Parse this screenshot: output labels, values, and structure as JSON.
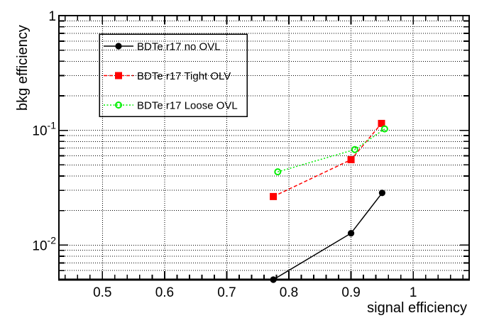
{
  "chart_data": {
    "type": "line",
    "title": "",
    "xlabel": "signal efficiency",
    "ylabel": "bkg efficiency",
    "xlim": [
      0.43,
      1.09
    ],
    "ylim": [
      0.005,
      1.0
    ],
    "y_scale": "log",
    "x_scale": "linear",
    "grid": "dotted black, vertical at x majors, horizontal at every log subdivision",
    "x_ticks": [
      {
        "value": 0.5,
        "label": "0.5"
      },
      {
        "value": 0.6,
        "label": "0.6"
      },
      {
        "value": 0.7,
        "label": "0.7"
      },
      {
        "value": 0.8,
        "label": "0.8"
      },
      {
        "value": 0.9,
        "label": "0.9"
      },
      {
        "value": 1.0,
        "label": "1"
      }
    ],
    "x_minor_step": 0.02,
    "y_ticks": [
      {
        "value": 1,
        "base": "1",
        "exp": ""
      },
      {
        "value": 0.1,
        "base": "10",
        "exp": "-1"
      },
      {
        "value": 0.01,
        "base": "10",
        "exp": "-2"
      }
    ],
    "y_minor": "2-9 multiples of each decade",
    "colors": {
      "axis": "#000000",
      "grid": "#000000",
      "series_no_ovl": "#000000",
      "series_tight_olv": "#ff0000",
      "series_loose_ovl": "#00ee00"
    },
    "legend": {
      "position": "top-left",
      "border_color": "#000000",
      "fill": "transparent"
    },
    "series": [
      {
        "name": "BDTe r17 no OVL",
        "color": "#000000",
        "line": "solid",
        "marker": "filled-circle",
        "points": [
          [
            0.775,
            0.005
          ],
          [
            0.9,
            0.0127
          ],
          [
            0.95,
            0.0285
          ]
        ]
      },
      {
        "name": "BDTe r17 Tight OLV",
        "color": "#ff0000",
        "line": "dashed",
        "marker": "filled-square",
        "points": [
          [
            0.775,
            0.0265
          ],
          [
            0.9,
            0.0555
          ],
          [
            0.949,
            0.115
          ]
        ]
      },
      {
        "name": "BDTe r17 Loose OVL",
        "color": "#00ee00",
        "line": "dotted",
        "marker": "open-circle",
        "points": [
          [
            0.782,
            0.0435
          ],
          [
            0.906,
            0.068
          ],
          [
            0.954,
            0.103
          ]
        ]
      }
    ]
  }
}
